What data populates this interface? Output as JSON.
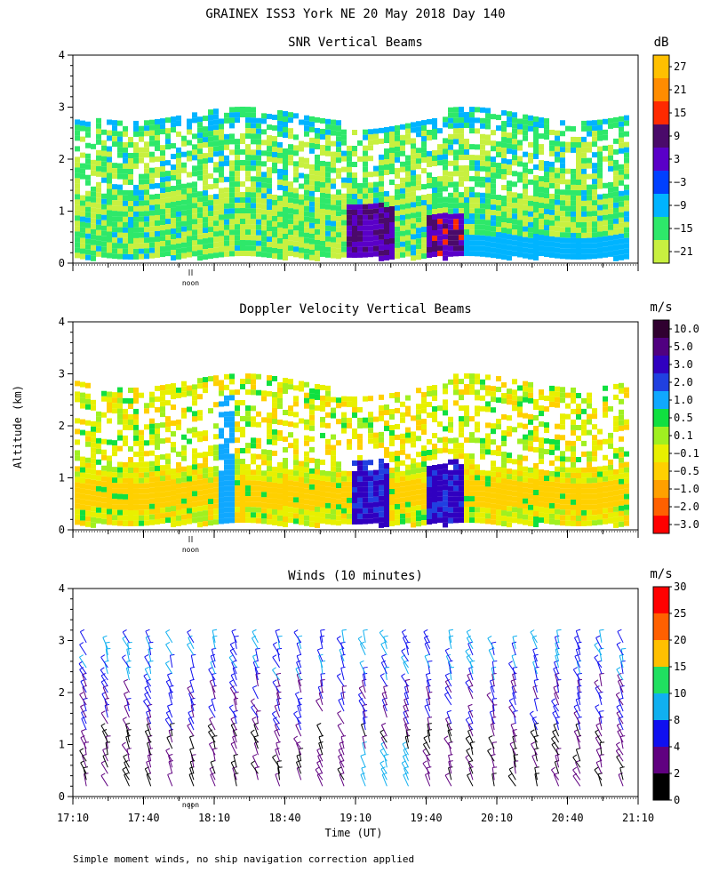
{
  "title": "GRAINEX ISS3 York NE  20 May 2018 Day 140",
  "ylabel": "Altitude (km)",
  "xlabel": "Time (UT)",
  "footnote": "Simple moment winds, no ship navigation correction applied",
  "noon_label": "noon",
  "chart_data": [
    {
      "type": "heatmap",
      "title": "SNR Vertical Beams",
      "units": "dB",
      "ylim": [
        0,
        4
      ],
      "yticks": [
        "0",
        "1",
        "2",
        "3",
        "4"
      ],
      "x_range_hours": [
        17.1667,
        21.1667
      ],
      "colorbar_labels": [
        "27",
        "21",
        "15",
        "9",
        "3",
        "−3",
        "−9",
        "−15",
        "−21"
      ],
      "colorbar_colors": [
        "#ffc000",
        "#ff8c00",
        "#ff2a00",
        "#4a0a6a",
        "#5a00c8",
        "#0040ff",
        "#00b4ff",
        "#2ee86a",
        "#c8f040"
      ]
    },
    {
      "type": "heatmap",
      "title": "Doppler Velocity Vertical Beams",
      "units": "m/s",
      "ylim": [
        0,
        4
      ],
      "yticks": [
        "0",
        "1",
        "2",
        "3",
        "4"
      ],
      "x_range_hours": [
        17.1667,
        21.1667
      ],
      "colorbar_labels": [
        "10.0",
        "5.0",
        "3.0",
        "2.0",
        "1.0",
        "0.5",
        "0.1",
        "−0.1",
        "−0.5",
        "−1.0",
        "−2.0",
        "−3.0"
      ],
      "colorbar_colors": [
        "#300030",
        "#500080",
        "#3000c0",
        "#2040e0",
        "#10a8ff",
        "#10e040",
        "#a0f020",
        "#e8f000",
        "#ffd000",
        "#ffa000",
        "#ff6000",
        "#ff0000"
      ]
    },
    {
      "type": "barbs",
      "title": "Winds (10 minutes)",
      "units": "m/s",
      "ylim": [
        0,
        4
      ],
      "yticks": [
        "0",
        "1",
        "2",
        "3",
        "4"
      ],
      "xtick_labels": [
        "17:10",
        "17:40",
        "18:10",
        "18:40",
        "19:10",
        "19:40",
        "20:10",
        "20:40",
        "21:10"
      ],
      "xtick_hours": [
        17.1667,
        17.6667,
        18.1667,
        18.6667,
        19.1667,
        19.6667,
        20.1667,
        20.6667,
        21.1667
      ],
      "colorbar_labels": [
        "30",
        "25",
        "20",
        "15",
        "10",
        "8",
        "4",
        "2",
        "0"
      ],
      "colorbar_colors": [
        "#ff0000",
        "#ff6000",
        "#ffc000",
        "#20e060",
        "#10b0f0",
        "#1010f0",
        "#600080",
        "#000000"
      ]
    }
  ]
}
